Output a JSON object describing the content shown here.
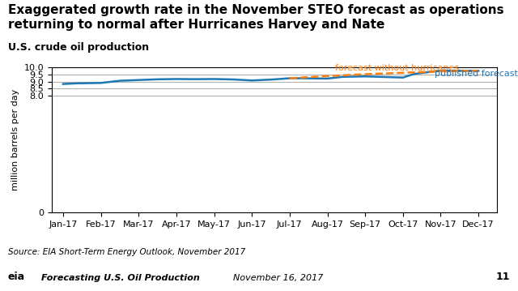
{
  "chart_data": {
    "type": "line",
    "title": "Exaggerated growth rate in the November STEO forecast as operations\nreturning to normal after Hurricanes Harvey and Nate",
    "subtitle": "U.S. crude oil production",
    "y_label": "million barrels per day",
    "source": "Source: EIA Short-Term Energy Outlook, November 2017",
    "footer": [
      "eia",
      "Forecasting U.S. Oil Production",
      "November 16, 2017",
      "11"
    ],
    "series": [
      {
        "name": "published forecast",
        "line_style": "solid",
        "x": [
          0,
          0.35,
          1,
          1.5,
          2,
          2.5,
          3,
          3.5,
          4,
          4.5,
          5,
          5.5,
          6,
          6.3,
          7,
          7.4,
          8,
          8.5,
          9,
          9.3,
          10,
          10.5,
          11
        ],
        "values": [
          8.83,
          8.87,
          8.9,
          9.05,
          9.1,
          9.15,
          9.17,
          9.16,
          9.17,
          9.14,
          9.07,
          9.13,
          9.22,
          9.22,
          9.2,
          9.32,
          9.35,
          9.31,
          9.27,
          9.52,
          9.75,
          9.74,
          9.73
        ]
      },
      {
        "name": "forecast without hurricanes",
        "line_style": "dashed",
        "x": [
          6.0,
          6.5,
          7.0,
          7.5,
          8.0,
          8.5,
          9.0,
          9.5,
          10.0,
          10.5,
          11.0
        ],
        "values": [
          9.22,
          9.3,
          9.37,
          9.44,
          9.5,
          9.55,
          9.6,
          9.65,
          9.7,
          9.72,
          9.73
        ]
      }
    ],
    "annotations": [
      {
        "text": "forecast without hurricanes",
        "x": 7.2,
        "y": 9.62
      },
      {
        "text": "published forecast",
        "x": 9.85,
        "y": 9.27
      }
    ],
    "xlim": [
      -0.3,
      11.5
    ],
    "xticks": [
      {
        "value": 0,
        "label": "Jan-17"
      },
      {
        "value": 1,
        "label": "Feb-17"
      },
      {
        "value": 2,
        "label": "Mar-17"
      },
      {
        "value": 3,
        "label": "Apr-17"
      },
      {
        "value": 4,
        "label": "May-17"
      },
      {
        "value": 5,
        "label": "Jun-17"
      },
      {
        "value": 6,
        "label": "Jul-17"
      },
      {
        "value": 7,
        "label": "Aug-17"
      },
      {
        "value": 8,
        "label": "Sep-17"
      },
      {
        "value": 9,
        "label": "Oct-17"
      },
      {
        "value": 10,
        "label": "Nov-17"
      },
      {
        "value": 11,
        "label": "Dec-17"
      }
    ],
    "ylim": [
      0,
      10.0
    ],
    "yticks": [
      0,
      8.0,
      8.5,
      9.0,
      9.5,
      10.0
    ],
    "grid": true
  }
}
